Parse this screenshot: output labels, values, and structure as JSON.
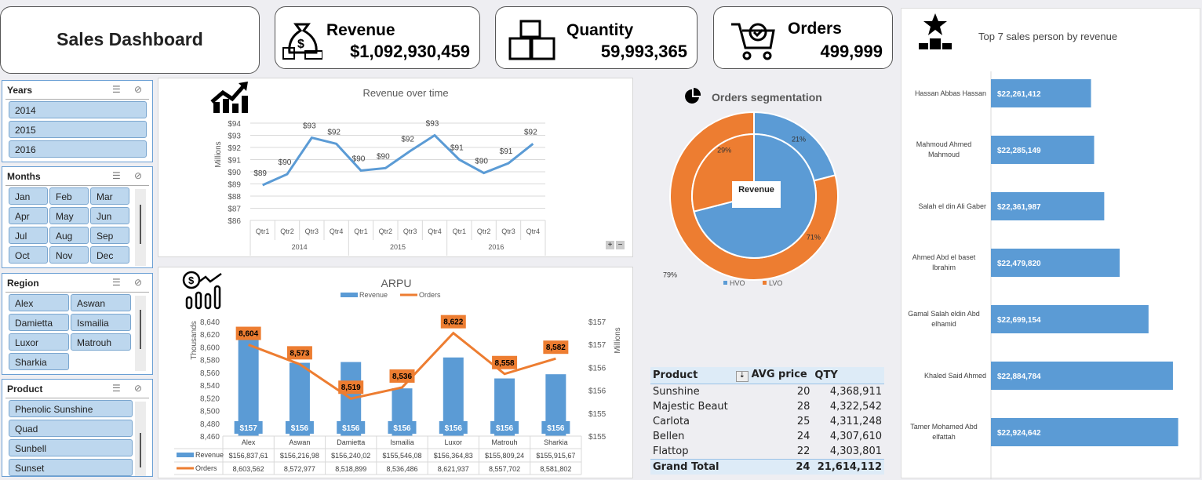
{
  "title": "Sales Dashboard",
  "kpis": {
    "revenue": {
      "label": "Revenue",
      "value": "$1,092,930,459",
      "icon": "money-bag-icon"
    },
    "quantity": {
      "label": "Quantity",
      "value": "59,993,365",
      "icon": "boxes-icon"
    },
    "orders": {
      "label": "Orders",
      "value": "499,999",
      "icon": "cart-icon"
    }
  },
  "slicers": {
    "years": {
      "title": "Years",
      "items": [
        "2014",
        "2015",
        "2016"
      ]
    },
    "months": {
      "title": "Months",
      "items": [
        "Jan",
        "Feb",
        "Mar",
        "Apr",
        "May",
        "Jun",
        "Jul",
        "Aug",
        "Sep",
        "Oct",
        "Nov",
        "Dec"
      ]
    },
    "region": {
      "title": "Region",
      "items": [
        "Alex",
        "Aswan",
        "Damietta",
        "Ismailia",
        "Luxor",
        "Matrouh",
        "Sharkia"
      ]
    },
    "product": {
      "title": "Product",
      "items": [
        "Phenolic Sunshine",
        "Quad",
        "Sunbell",
        "Sunset"
      ]
    }
  },
  "colors": {
    "blue": "#5b9bd5",
    "orange": "#ed7d31"
  },
  "chart_data": [
    {
      "id": "revenue_over_time",
      "type": "line",
      "title": "Revenue over time",
      "ylabel": "Millions",
      "ylim": [
        86,
        94
      ],
      "yticks": [
        "$86",
        "$87",
        "$88",
        "$89",
        "$90",
        "$91",
        "$92",
        "$93",
        "$94"
      ],
      "categories": [
        "Qtr1",
        "Qtr2",
        "Qtr3",
        "Qtr4",
        "Qtr1",
        "Qtr2",
        "Qtr3",
        "Qtr4",
        "Qtr1",
        "Qtr2",
        "Qtr3",
        "Qtr4"
      ],
      "groups": [
        "2014",
        "2015",
        "2016"
      ],
      "values": [
        88.9,
        89.8,
        92.8,
        92.3,
        90.1,
        90.3,
        91.7,
        93.0,
        91.0,
        89.9,
        90.7,
        92.3
      ],
      "labels": [
        "$89",
        "$90",
        "$93",
        "$92",
        "$90",
        "$90",
        "$92",
        "$93",
        "$91",
        "$90",
        "$91",
        "$92"
      ]
    },
    {
      "id": "arpu",
      "type": "bar",
      "title": "ARPU",
      "ylabel": "Thousands",
      "y2label": "Millions",
      "ylim": [
        8460,
        8640
      ],
      "yticks": [
        "8,460",
        "8,480",
        "8,500",
        "8,520",
        "8,540",
        "8,560",
        "8,580",
        "8,600",
        "8,620",
        "8,640"
      ],
      "y2lim": [
        154.3,
        157.3
      ],
      "y2ticks": [
        "$155",
        "$155",
        "$156",
        "$156",
        "$157",
        "$157"
      ],
      "legend": [
        "Revenue",
        "Orders"
      ],
      "categories": [
        "Alex",
        "Aswan",
        "Damietta",
        "Ismailia",
        "Luxor",
        "Matrouh",
        "Sharkia"
      ],
      "series": [
        {
          "name": "Revenue",
          "values": [
            156.84,
            156.22,
            156.24,
            155.55,
            156.36,
            155.81,
            155.92
          ],
          "labels": [
            "$157",
            "$156",
            "$156",
            "$156",
            "$156",
            "$156",
            "$156"
          ],
          "table": [
            "$156,837,61",
            "$156,216,98",
            "$156,240,02",
            "$155,546,08",
            "$156,364,83",
            "$155,809,24",
            "$155,915,67"
          ]
        },
        {
          "name": "Orders",
          "values": [
            8603.562,
            8572.977,
            8518.899,
            8536.486,
            8621.937,
            8557.702,
            8581.802
          ],
          "labels": [
            "8,604",
            "8,573",
            "8,519",
            "8,536",
            "8,622",
            "8,558",
            "8,582"
          ],
          "table": [
            "8,603,562",
            "8,572,977",
            "8,518,899",
            "8,536,486",
            "8,621,937",
            "8,557,702",
            "8,581,802"
          ]
        }
      ]
    },
    {
      "id": "orders_segmentation",
      "type": "pie",
      "title": "Orders segmentation",
      "center_label": "Revenue",
      "legend": [
        "HVO",
        "LVO"
      ],
      "outer": {
        "values": [
          21,
          79
        ],
        "labels": [
          "21%",
          "79%"
        ]
      },
      "inner": {
        "values": [
          71,
          29
        ],
        "labels": [
          "71%",
          "29%"
        ]
      }
    },
    {
      "id": "top7",
      "type": "bar",
      "title": "Top 7 sales person by revenue",
      "xlim": [
        21500000,
        23100000
      ],
      "categories": [
        "Hassan Abbas Hassan",
        "Mahmoud Ahmed Mahmoud",
        "Salah el din Ali Gaber",
        "Ahmed Abd el baset Ibrahim",
        "Gamal Salah eldin Abd elhamid",
        "Khaled Said Ahmed",
        "Tamer Mohamed Abd elfattah"
      ],
      "values": [
        22261412,
        22285149,
        22361987,
        22479820,
        22699154,
        22884784,
        22924642
      ],
      "labels": [
        "$22,261,412",
        "$22,285,149",
        "$22,361,987",
        "$22,479,820",
        "$22,699,154",
        "$22,884,784",
        "$22,924,642"
      ]
    }
  ],
  "pivot": {
    "headers": [
      "Product",
      "AVG price",
      "QTY"
    ],
    "rows": [
      [
        "Sunshine",
        "20",
        "4,368,911"
      ],
      [
        "Majestic Beaut",
        "28",
        "4,322,542"
      ],
      [
        "Carlota",
        "25",
        "4,311,248"
      ],
      [
        "Bellen",
        "24",
        "4,307,610"
      ],
      [
        "Flattop",
        "22",
        "4,303,801"
      ]
    ],
    "total": [
      "Grand Total",
      "24",
      "21,614,112"
    ]
  }
}
